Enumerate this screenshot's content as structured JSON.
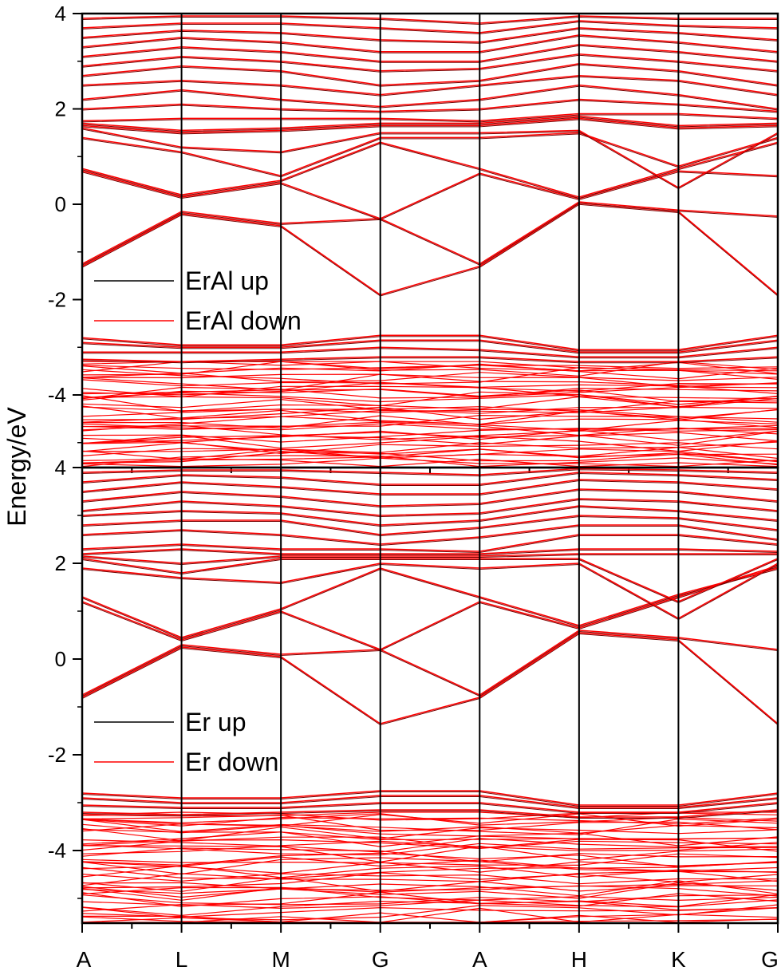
{
  "chart_data": {
    "type": "line",
    "ylabel": "Energy/eV",
    "kpath": [
      "A",
      "L",
      "M",
      "G",
      "A",
      "H",
      "K",
      "G"
    ],
    "panels": [
      {
        "name": "top",
        "ylim": [
          -5.5,
          4
        ],
        "yticks": [
          -4,
          -2,
          0,
          2,
          4
        ],
        "ytick_labels": [
          "-4",
          "-2",
          "0",
          "2",
          "4"
        ],
        "legend": [
          {
            "label": "ErAl up",
            "color": "#000000"
          },
          {
            "label": "ErAl down",
            "color": "#ff0000"
          }
        ],
        "series": [
          {
            "values": [
              -1.3,
              -0.2,
              -0.45,
              -1.9,
              -1.3,
              0.02,
              -0.15,
              -1.9
            ]
          },
          {
            "values": [
              -1.25,
              -0.15,
              -0.4,
              -0.3,
              -1.25,
              0.05,
              -0.12,
              -0.25
            ]
          },
          {
            "values": [
              0.7,
              0.15,
              0.45,
              -0.3,
              0.65,
              0.12,
              0.7,
              0.6
            ]
          },
          {
            "values": [
              0.75,
              0.2,
              0.5,
              1.3,
              0.75,
              0.15,
              0.75,
              1.3
            ]
          },
          {
            "values": [
              1.4,
              1.1,
              0.6,
              1.4,
              1.4,
              1.5,
              0.8,
              1.4
            ]
          },
          {
            "values": [
              1.6,
              1.2,
              1.1,
              1.5,
              1.5,
              1.55,
              0.35,
              1.5
            ]
          },
          {
            "values": [
              1.65,
              1.5,
              1.55,
              1.65,
              1.65,
              1.8,
              1.6,
              1.65
            ]
          },
          {
            "values": [
              1.7,
              1.55,
              1.6,
              1.7,
              1.7,
              1.85,
              1.65,
              1.7
            ]
          },
          {
            "values": [
              1.75,
              1.8,
              1.8,
              1.8,
              1.75,
              1.9,
              1.9,
              1.8
            ]
          },
          {
            "values": [
              2.0,
              2.1,
              2.0,
              1.95,
              2.0,
              2.2,
              2.1,
              1.95
            ]
          },
          {
            "values": [
              2.2,
              2.4,
              2.2,
              2.05,
              2.2,
              2.5,
              2.3,
              2.0
            ]
          },
          {
            "values": [
              2.5,
              2.6,
              2.5,
              2.3,
              2.5,
              2.7,
              2.6,
              2.3
            ]
          },
          {
            "values": [
              2.7,
              2.9,
              2.8,
              2.5,
              2.6,
              2.95,
              2.8,
              2.5
            ]
          },
          {
            "values": [
              2.9,
              3.1,
              3.0,
              2.8,
              2.85,
              3.15,
              3.0,
              2.8
            ]
          },
          {
            "values": [
              3.1,
              3.3,
              3.2,
              3.0,
              3.0,
              3.35,
              3.2,
              3.0
            ]
          },
          {
            "values": [
              3.3,
              3.5,
              3.4,
              3.2,
              3.2,
              3.55,
              3.4,
              3.2
            ]
          },
          {
            "values": [
              3.5,
              3.65,
              3.6,
              3.45,
              3.4,
              3.7,
              3.6,
              3.45
            ]
          },
          {
            "values": [
              3.7,
              3.8,
              3.8,
              3.7,
              3.6,
              3.85,
              3.75,
              3.7
            ]
          },
          {
            "values": [
              3.9,
              3.95,
              3.95,
              3.9,
              3.8,
              3.95,
              3.9,
              3.9
            ]
          },
          {
            "values": [
              -2.8,
              -2.95,
              -2.95,
              -2.75,
              -2.75,
              -3.05,
              -3.05,
              -2.75
            ]
          },
          {
            "values": [
              -2.9,
              -3.0,
              -3.0,
              -2.85,
              -2.85,
              -3.1,
              -3.1,
              -2.85
            ]
          },
          {
            "values": [
              -3.1,
              -3.1,
              -3.1,
              -3.0,
              -3.05,
              -3.2,
              -3.2,
              -3.0
            ]
          },
          {
            "values": [
              -3.25,
              -3.3,
              -3.25,
              -3.2,
              -3.2,
              -3.3,
              -3.3,
              -3.2
            ]
          }
        ],
        "dense_band": [
          -5.5,
          -3.3
        ]
      },
      {
        "name": "bottom",
        "ylim": [
          -5.5,
          4
        ],
        "yticks": [
          -4,
          -2,
          0,
          2,
          4
        ],
        "ytick_labels": [
          "-4",
          "-2",
          "0",
          "2",
          "4"
        ],
        "legend": [
          {
            "label": "Er up",
            "color": "#000000"
          },
          {
            "label": "Er down",
            "color": "#ff0000"
          }
        ],
        "series": [
          {
            "values": [
              -0.8,
              0.25,
              0.05,
              -1.35,
              -0.8,
              0.55,
              0.4,
              -1.35
            ]
          },
          {
            "values": [
              -0.75,
              0.3,
              0.1,
              0.2,
              -0.75,
              0.6,
              0.45,
              0.2
            ]
          },
          {
            "values": [
              1.2,
              0.4,
              1.0,
              0.2,
              1.2,
              0.65,
              1.3,
              1.95
            ]
          },
          {
            "values": [
              1.3,
              0.45,
              1.05,
              1.9,
              1.3,
              0.7,
              1.35,
              1.9
            ]
          },
          {
            "values": [
              1.9,
              1.7,
              1.6,
              2.0,
              1.9,
              2.0,
              0.85,
              2.0
            ]
          },
          {
            "values": [
              2.1,
              1.8,
              2.1,
              2.1,
              2.1,
              2.1,
              1.2,
              2.1
            ]
          },
          {
            "values": [
              2.15,
              2.0,
              2.15,
              2.15,
              2.15,
              2.2,
              2.2,
              2.2
            ]
          },
          {
            "values": [
              2.2,
              2.3,
              2.2,
              2.2,
              2.2,
              2.3,
              2.3,
              2.25
            ]
          },
          {
            "values": [
              2.3,
              2.4,
              2.3,
              2.3,
              2.25,
              2.6,
              2.6,
              2.4
            ]
          },
          {
            "values": [
              2.6,
              2.7,
              2.6,
              2.4,
              2.55,
              2.8,
              2.8,
              2.5
            ]
          },
          {
            "values": [
              2.8,
              2.9,
              2.9,
              2.6,
              2.75,
              3.0,
              2.95,
              2.7
            ]
          },
          {
            "values": [
              3.0,
              3.1,
              3.05,
              2.8,
              2.9,
              3.2,
              3.1,
              2.9
            ]
          },
          {
            "values": [
              3.1,
              3.3,
              3.2,
              3.0,
              3.05,
              3.35,
              3.3,
              3.1
            ]
          },
          {
            "values": [
              3.3,
              3.5,
              3.4,
              3.2,
              3.25,
              3.55,
              3.5,
              3.3
            ]
          },
          {
            "values": [
              3.5,
              3.7,
              3.6,
              3.45,
              3.45,
              3.75,
              3.7,
              3.55
            ]
          },
          {
            "values": [
              3.7,
              3.85,
              3.8,
              3.65,
              3.65,
              3.9,
              3.85,
              3.75
            ]
          },
          {
            "values": [
              3.9,
              3.95,
              3.95,
              3.9,
              3.85,
              3.98,
              3.95,
              3.9
            ]
          },
          {
            "values": [
              -2.8,
              -2.9,
              -2.9,
              -2.75,
              -2.75,
              -3.05,
              -3.05,
              -2.8
            ]
          },
          {
            "values": [
              -2.9,
              -3.0,
              -3.0,
              -2.85,
              -2.85,
              -3.1,
              -3.1,
              -2.9
            ]
          },
          {
            "values": [
              -3.05,
              -3.1,
              -3.1,
              -3.0,
              -3.0,
              -3.2,
              -3.2,
              -3.0
            ]
          },
          {
            "values": [
              -3.2,
              -3.25,
              -3.2,
              -3.15,
              -3.15,
              -3.3,
              -3.3,
              -3.15
            ]
          }
        ],
        "dense_band": [
          -5.5,
          -3.2
        ]
      }
    ]
  }
}
